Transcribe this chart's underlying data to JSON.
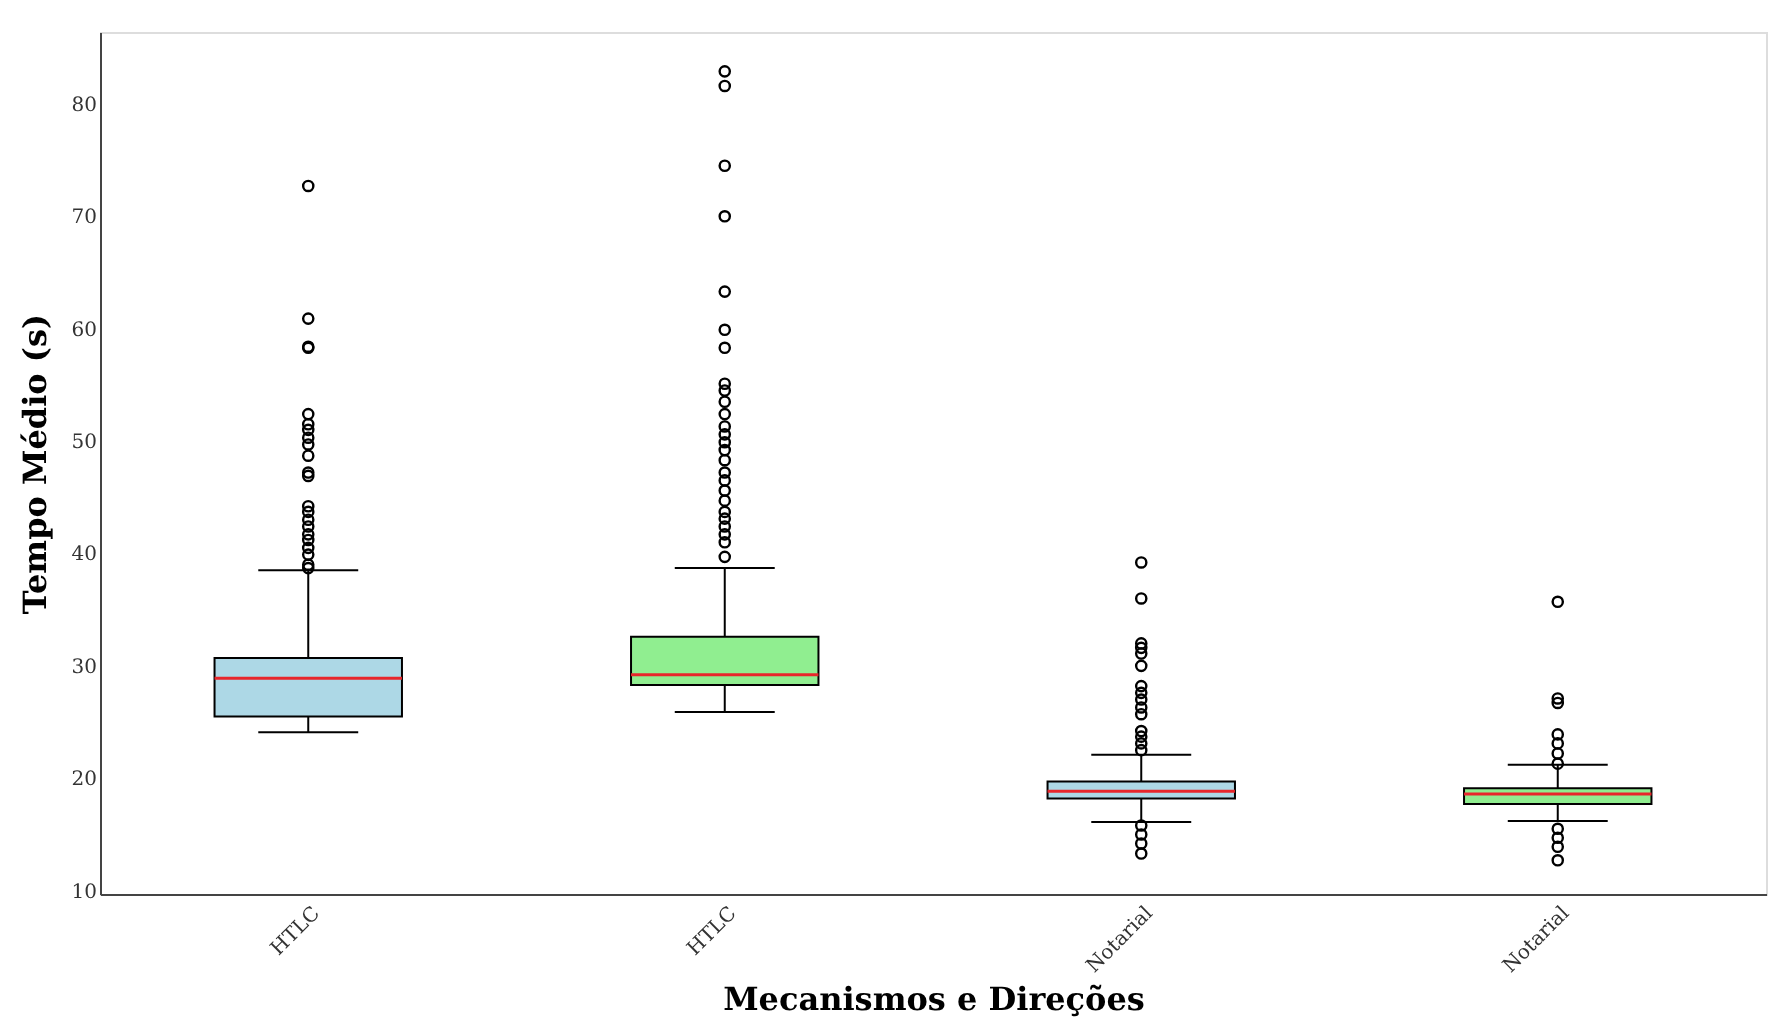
{
  "chart_data": {
    "type": "box",
    "xlabel": "Mecanismos e Direções",
    "ylabel": "Tempo Médio (s)",
    "categories": [
      "HTLC",
      "HTLC",
      "Notarial",
      "Notarial"
    ],
    "ylim": [
      9.7,
      86.4
    ],
    "yticks": [
      10,
      20,
      30,
      40,
      50,
      60,
      70,
      80
    ],
    "grid": false,
    "series": [
      {
        "color": "#add8e6",
        "boxes": [
          {
            "low": 24.1,
            "q1": 25.5,
            "median": 28.9,
            "q3": 30.7,
            "high": 38.5,
            "outliers": [
              72.7,
              60.9,
              58.4,
              58.3,
              52.4,
              51.5,
              51.0,
              50.3,
              49.7,
              48.7,
              47.2,
              46.9,
              44.2,
              43.7,
              43.0,
              42.4,
              41.7,
              41.2,
              40.5,
              39.9,
              39.0,
              38.7
            ]
          },
          null,
          {
            "low": 16.1,
            "q1": 18.2,
            "median": 18.85,
            "q3": 19.7,
            "high": 22.1,
            "outliers": [
              39.2,
              36.0,
              32.0,
              31.6,
              31.1,
              30.0,
              28.2,
              27.6,
              27.0,
              26.3,
              25.7,
              24.2,
              23.7,
              23.1,
              22.5,
              15.8,
              15.0,
              14.2,
              13.3
            ]
          },
          null
        ]
      },
      {
        "color": "#90ee90",
        "boxes": [
          null,
          {
            "low": 25.9,
            "q1": 28.3,
            "median": 29.2,
            "q3": 32.6,
            "high": 38.7,
            "outliers": [
              82.9,
              81.6,
              74.5,
              70.0,
              63.3,
              59.9,
              58.3,
              55.1,
              54.5,
              53.5,
              52.4,
              51.3,
              50.6,
              49.9,
              49.2,
              48.3,
              47.2,
              46.5,
              45.6,
              44.7,
              43.7,
              43.1,
              42.4,
              41.7,
              41.0,
              39.7
            ]
          },
          null,
          {
            "low": 16.2,
            "q1": 17.7,
            "median": 18.6,
            "q3": 19.1,
            "high": 21.2,
            "outliers": [
              35.7,
              27.1,
              26.7,
              23.9,
              23.1,
              22.2,
              21.3,
              15.5,
              14.7,
              13.9,
              12.7
            ]
          }
        ]
      }
    ]
  }
}
